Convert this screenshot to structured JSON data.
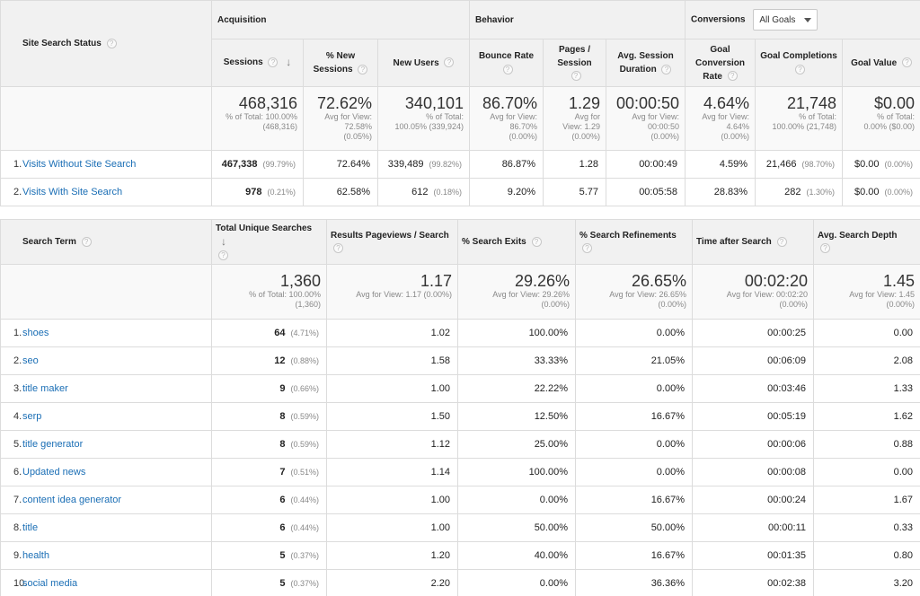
{
  "table1": {
    "dimension_header": "Site Search Status",
    "groups": {
      "acquisition": "Acquisition",
      "behavior": "Behavior",
      "conversions": "Conversions",
      "goals_select": "All Goals"
    },
    "columns": {
      "sessions": "Sessions",
      "new_sessions": "% New Sessions",
      "new_users": "New Users",
      "bounce_rate": "Bounce Rate",
      "pages_session": "Pages / Session",
      "avg_duration": "Avg. Session Duration",
      "goal_conv_rate": "Goal Conversion Rate",
      "goal_completions": "Goal Completions",
      "goal_value": "Goal Value"
    },
    "totals": {
      "sessions": {
        "big": "468,316",
        "sub1": "% of Total: 100.00%",
        "sub2": "(468,316)"
      },
      "new_sessions": {
        "big": "72.62%",
        "sub1": "Avg for View:",
        "sub2": "72.58%",
        "sub3": "(0.05%)"
      },
      "new_users": {
        "big": "340,101",
        "sub1": "% of Total:",
        "sub2": "100.05% (339,924)"
      },
      "bounce_rate": {
        "big": "86.70%",
        "sub1": "Avg for View:",
        "sub2": "86.70%",
        "sub3": "(0.00%)"
      },
      "pages_session": {
        "big": "1.29",
        "sub1": "Avg for",
        "sub2": "View: 1.29",
        "sub3": "(0.00%)"
      },
      "avg_duration": {
        "big": "00:00:50",
        "sub1": "Avg for View:",
        "sub2": "00:00:50",
        "sub3": "(0.00%)"
      },
      "goal_conv_rate": {
        "big": "4.64%",
        "sub1": "Avg for View:",
        "sub2": "4.64%",
        "sub3": "(0.00%)"
      },
      "goal_completions": {
        "big": "21,748",
        "sub1": "% of Total:",
        "sub2": "100.00% (21,748)"
      },
      "goal_value": {
        "big": "$0.00",
        "sub1": "% of Total:",
        "sub2": "0.00% ($0.00)"
      }
    },
    "rows": [
      {
        "rank": "1.",
        "label": "Visits Without Site Search",
        "sessions": "467,338",
        "sessions_pct": "(99.79%)",
        "new_sessions": "72.64%",
        "new_users": "339,489",
        "new_users_pct": "(99.82%)",
        "bounce_rate": "86.87%",
        "pages_session": "1.28",
        "avg_duration": "00:00:49",
        "goal_conv_rate": "4.59%",
        "goal_completions": "21,466",
        "goal_completions_pct": "(98.70%)",
        "goal_value": "$0.00",
        "goal_value_pct": "(0.00%)"
      },
      {
        "rank": "2.",
        "label": "Visits With Site Search",
        "sessions": "978",
        "sessions_pct": "(0.21%)",
        "new_sessions": "62.58%",
        "new_users": "612",
        "new_users_pct": "(0.18%)",
        "bounce_rate": "9.20%",
        "pages_session": "5.77",
        "avg_duration": "00:05:58",
        "goal_conv_rate": "28.83%",
        "goal_completions": "282",
        "goal_completions_pct": "(1.30%)",
        "goal_value": "$0.00",
        "goal_value_pct": "(0.00%)"
      }
    ]
  },
  "table2": {
    "dimension_header": "Search Term",
    "columns": {
      "unique_searches": "Total Unique Searches",
      "results_pageviews": "Results Pageviews / Search",
      "search_exits": "% Search Exits",
      "search_refinements": "% Search Refinements",
      "time_after": "Time after Search",
      "search_depth": "Avg. Search Depth"
    },
    "totals": {
      "unique_searches": {
        "big": "1,360",
        "sub1": "% of Total: 100.00%",
        "sub2": "(1,360)"
      },
      "results_pageviews": {
        "big": "1.17",
        "sub1": "Avg for View: 1.17 (0.00%)"
      },
      "search_exits": {
        "big": "29.26%",
        "sub1": "Avg for View: 29.26%",
        "sub2": "(0.00%)"
      },
      "search_refinements": {
        "big": "26.65%",
        "sub1": "Avg for View: 26.65%",
        "sub2": "(0.00%)"
      },
      "time_after": {
        "big": "00:02:20",
        "sub1": "Avg for View: 00:02:20",
        "sub2": "(0.00%)"
      },
      "search_depth": {
        "big": "1.45",
        "sub1": "Avg for View: 1.45",
        "sub2": "(0.00%)"
      }
    },
    "rows": [
      {
        "rank": "1.",
        "term": "shoes",
        "searches": "64",
        "pct": "(4.71%)",
        "rpv": "1.02",
        "exits": "100.00%",
        "refinements": "0.00%",
        "time": "00:00:25",
        "depth": "0.00"
      },
      {
        "rank": "2.",
        "term": "seo",
        "searches": "12",
        "pct": "(0.88%)",
        "rpv": "1.58",
        "exits": "33.33%",
        "refinements": "21.05%",
        "time": "00:06:09",
        "depth": "2.08"
      },
      {
        "rank": "3.",
        "term": "title maker",
        "searches": "9",
        "pct": "(0.66%)",
        "rpv": "1.00",
        "exits": "22.22%",
        "refinements": "0.00%",
        "time": "00:03:46",
        "depth": "1.33"
      },
      {
        "rank": "4.",
        "term": "serp",
        "searches": "8",
        "pct": "(0.59%)",
        "rpv": "1.50",
        "exits": "12.50%",
        "refinements": "16.67%",
        "time": "00:05:19",
        "depth": "1.62"
      },
      {
        "rank": "5.",
        "term": "title generator",
        "searches": "8",
        "pct": "(0.59%)",
        "rpv": "1.12",
        "exits": "25.00%",
        "refinements": "0.00%",
        "time": "00:00:06",
        "depth": "0.88"
      },
      {
        "rank": "6.",
        "term": "Updated news",
        "searches": "7",
        "pct": "(0.51%)",
        "rpv": "1.14",
        "exits": "100.00%",
        "refinements": "0.00%",
        "time": "00:00:08",
        "depth": "0.00"
      },
      {
        "rank": "7.",
        "term": "content idea generator",
        "searches": "6",
        "pct": "(0.44%)",
        "rpv": "1.00",
        "exits": "0.00%",
        "refinements": "16.67%",
        "time": "00:00:24",
        "depth": "1.67"
      },
      {
        "rank": "8.",
        "term": "title",
        "searches": "6",
        "pct": "(0.44%)",
        "rpv": "1.00",
        "exits": "50.00%",
        "refinements": "50.00%",
        "time": "00:00:11",
        "depth": "0.33"
      },
      {
        "rank": "9.",
        "term": "health",
        "searches": "5",
        "pct": "(0.37%)",
        "rpv": "1.20",
        "exits": "40.00%",
        "refinements": "16.67%",
        "time": "00:01:35",
        "depth": "0.80"
      },
      {
        "rank": "10.",
        "term": "social media",
        "searches": "5",
        "pct": "(0.37%)",
        "rpv": "2.20",
        "exits": "0.00%",
        "refinements": "36.36%",
        "time": "00:02:38",
        "depth": "3.20"
      }
    ]
  },
  "icons": {
    "help": "?",
    "sort_down": "↓"
  },
  "colors": {
    "link": "#1a6eb5",
    "header_bg": "#f1f1f1",
    "totals_bg": "#f9f9f9"
  }
}
